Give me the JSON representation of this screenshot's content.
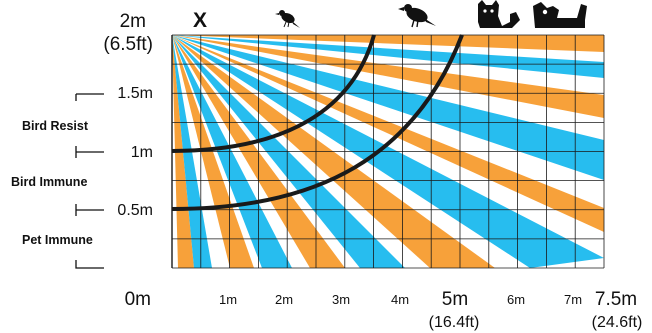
{
  "height_axis": {
    "top_label": "2m",
    "top_sub": "(6.5ft)",
    "ticks": [
      {
        "label": "1.5m",
        "value": 1.5
      },
      {
        "label": "1m",
        "value": 1.0
      },
      {
        "label": "0.5m",
        "value": 0.5
      }
    ],
    "origin_label": "0m"
  },
  "distance_axis": {
    "ticks": [
      {
        "label": "1m",
        "value": 1
      },
      {
        "label": "2m",
        "value": 2
      },
      {
        "label": "3m",
        "value": 3
      },
      {
        "label": "4m",
        "value": 4
      },
      {
        "label": "5m",
        "value": 5,
        "sub": "(16.4ft)"
      },
      {
        "label": "6m",
        "value": 6
      },
      {
        "label": "7m",
        "value": 7
      },
      {
        "label": "7.5m",
        "value": 7.5,
        "sub": "(24.6ft)"
      }
    ]
  },
  "zones": [
    {
      "label": "Bird Resist"
    },
    {
      "label": "Bird Immune"
    },
    {
      "label": "Pet Immune"
    }
  ],
  "icons": [
    {
      "name": "x-icon",
      "glyph": "X"
    },
    {
      "name": "small-bird-icon"
    },
    {
      "name": "large-bird-icon"
    },
    {
      "name": "cat-icon"
    },
    {
      "name": "dog-icon"
    }
  ],
  "colors": {
    "orange": "#f7a13a",
    "blue": "#27bdef",
    "grid": "#1a1a1a",
    "curve": "#1a1a1a"
  }
}
